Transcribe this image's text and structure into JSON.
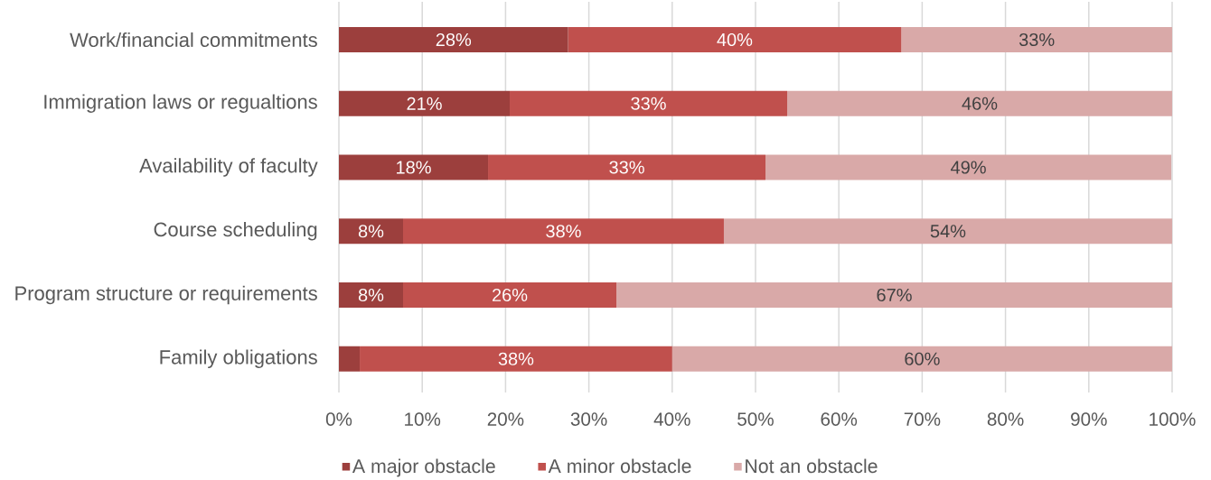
{
  "chart_data": {
    "type": "bar",
    "orientation": "horizontal",
    "stacked": true,
    "categories": [
      "Work/financial commitments",
      "Immigration laws or regualtions",
      "Availability of faculty",
      "Course scheduling",
      "Program structure or requirements",
      "Family obligations"
    ],
    "series": [
      {
        "name": "A major obstacle",
        "color": "#9c3f3d",
        "values": [
          27.5,
          20.5,
          17.9,
          7.7,
          7.7,
          2.5
        ],
        "value_labels": [
          "28%",
          "21%",
          "18%",
          "8%",
          "8%",
          null
        ]
      },
      {
        "name": "A minor obstacle",
        "color": "#c0504d",
        "values": [
          40,
          33.3,
          33.3,
          38.5,
          25.6,
          37.5
        ],
        "value_labels": [
          "40%",
          "33%",
          "33%",
          "38%",
          "26%",
          "38%"
        ]
      },
      {
        "name": "Not an obstacle",
        "color": "#d9a9a8",
        "values": [
          32.5,
          46.2,
          48.7,
          53.8,
          66.7,
          60
        ],
        "value_labels": [
          "33%",
          "46%",
          "49%",
          "54%",
          "67%",
          "60%"
        ]
      }
    ],
    "xlim": [
      0,
      100
    ],
    "xticks": [
      {
        "value": 0,
        "label": "0%"
      },
      {
        "value": 10,
        "label": "10%"
      },
      {
        "value": 20,
        "label": "20%"
      },
      {
        "value": 30,
        "label": "30%"
      },
      {
        "value": 40,
        "label": "40%"
      },
      {
        "value": 50,
        "label": "50%"
      },
      {
        "value": 60,
        "label": "60%"
      },
      {
        "value": 70,
        "label": "70%"
      },
      {
        "value": 80,
        "label": "80%"
      },
      {
        "value": 90,
        "label": "90%"
      },
      {
        "value": 100,
        "label": "100%"
      }
    ],
    "grid": "x",
    "legend": "bottom"
  }
}
